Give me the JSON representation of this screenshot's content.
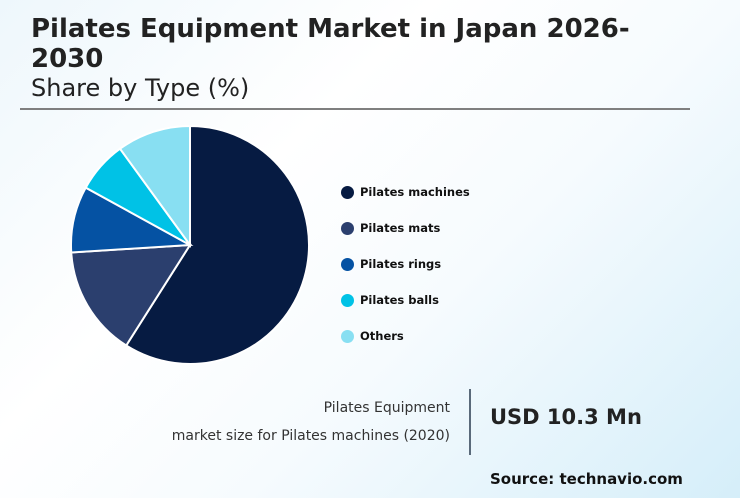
{
  "header": {
    "title": "Pilates Equipment Market in Japan 2026-2030",
    "subtitle": "Share by Type (%)"
  },
  "chart_data": {
    "type": "pie",
    "title": "Pilates Equipment Market in Japan 2026-2030",
    "subtitle": "Share by Type (%)",
    "categories": [
      "Pilates machines",
      "Pilates mats",
      "Pilates rings",
      "Pilates balls",
      "Others"
    ],
    "values": [
      59,
      15,
      9,
      7,
      10
    ],
    "colors": [
      "#061b42",
      "#2b3f6e",
      "#0552a3",
      "#00c2e6",
      "#88dff2"
    ],
    "legend_position": "right",
    "start_angle": "12 o'clock, clockwise"
  },
  "legend": {
    "items": [
      {
        "label": "Pilates machines",
        "color": "#061b42"
      },
      {
        "label": "Pilates mats",
        "color": "#2b3f6e"
      },
      {
        "label": "Pilates rings",
        "color": "#0552a3"
      },
      {
        "label": "Pilates balls",
        "color": "#00c2e6"
      },
      {
        "label": "Others",
        "color": "#88dff2"
      }
    ]
  },
  "info": {
    "label_line1": "Pilates Equipment",
    "label_line2": "market size for Pilates machines (2020)",
    "value": "USD 10.3 Mn"
  },
  "source": "Source: technavio.com"
}
